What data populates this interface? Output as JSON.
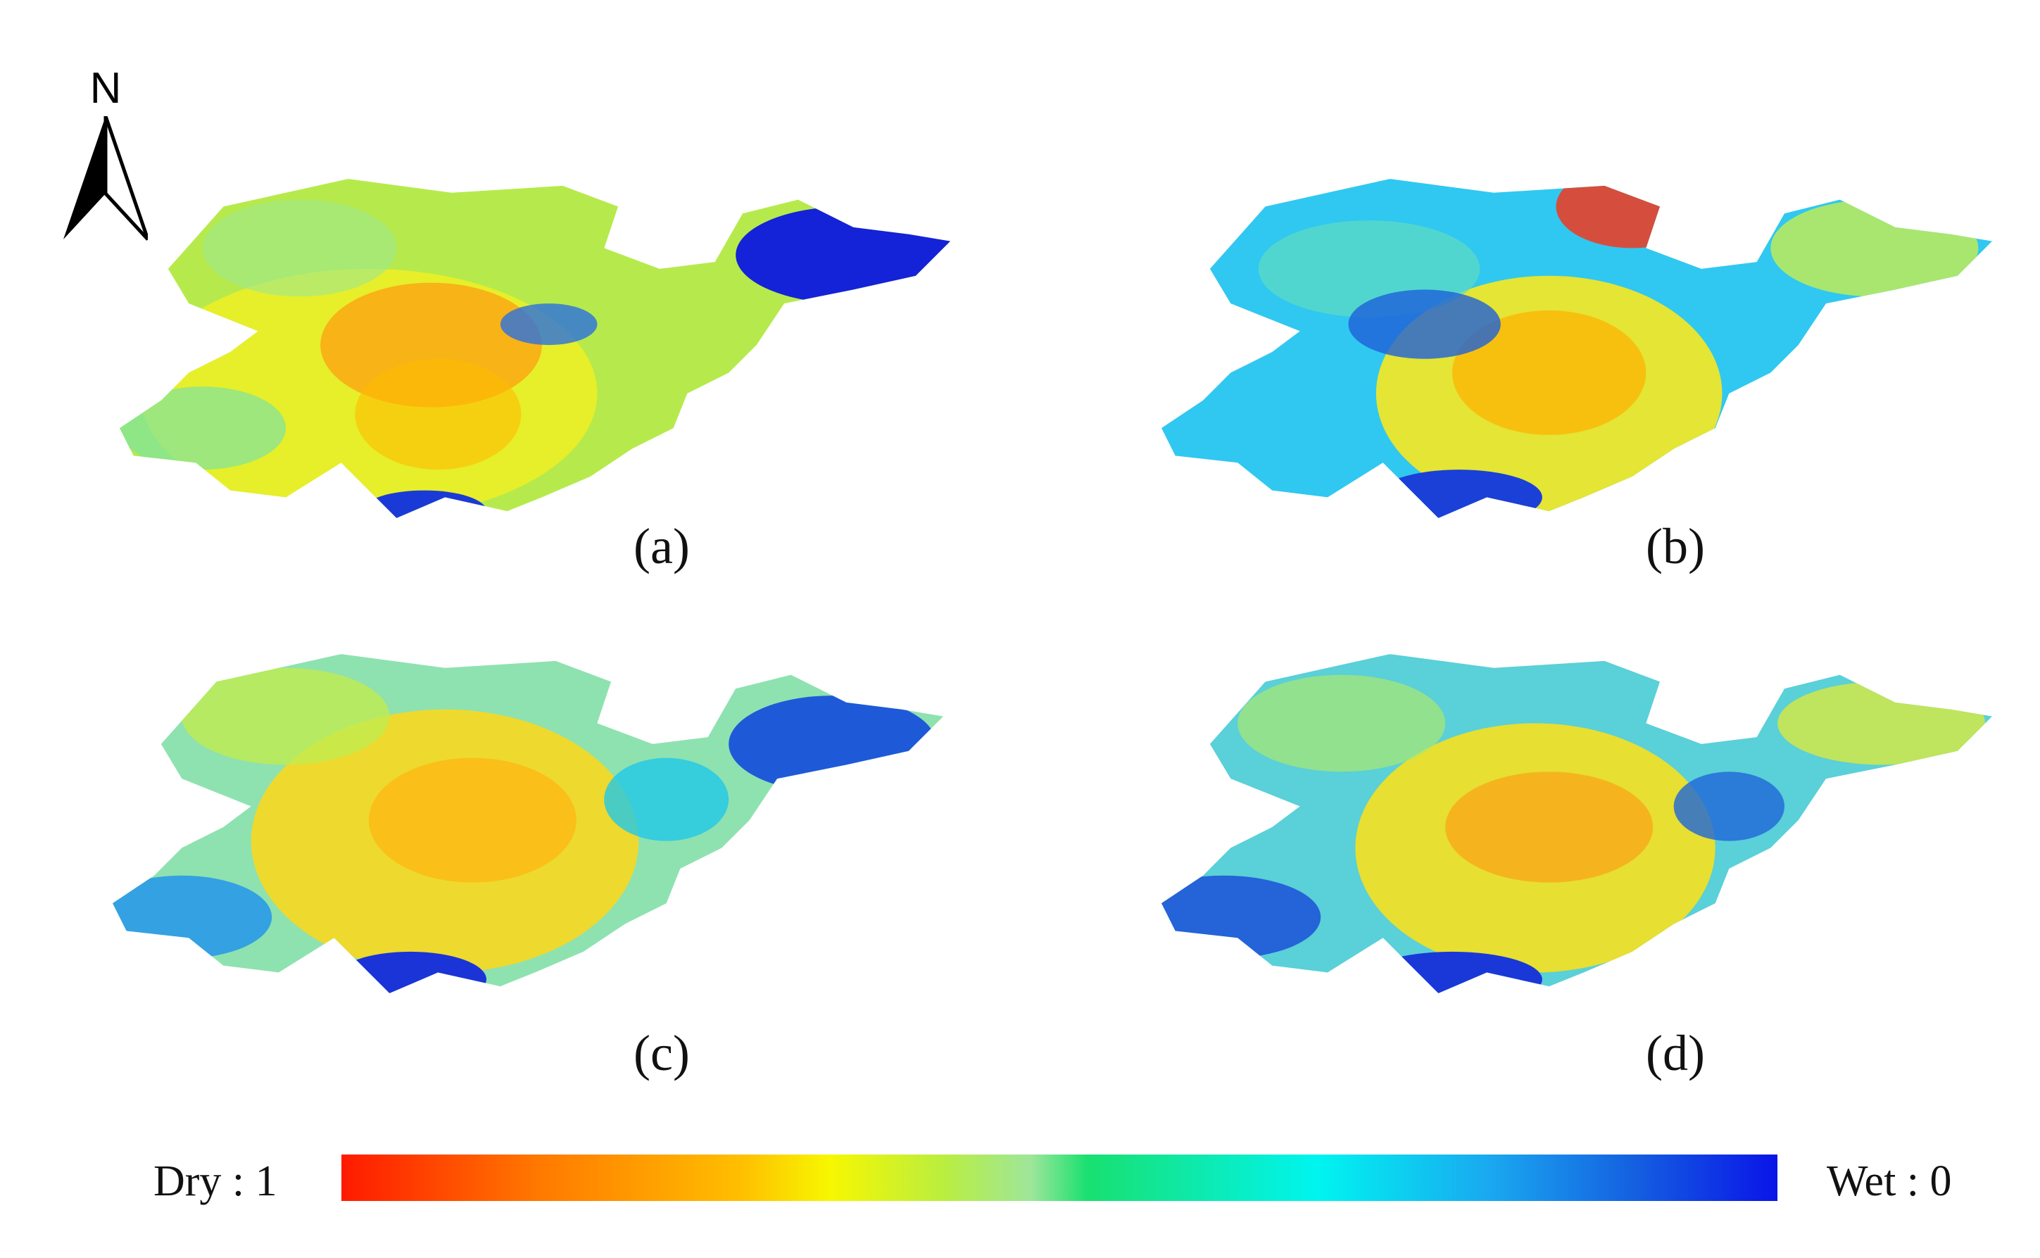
{
  "north_arrow": {
    "letter": "N",
    "icon": "north-arrow-icon"
  },
  "panels": [
    {
      "id": "a",
      "label": "(a)"
    },
    {
      "id": "b",
      "label": "(b)"
    },
    {
      "id": "c",
      "label": "(c)"
    },
    {
      "id": "d",
      "label": "(d)"
    }
  ],
  "legend": {
    "min_label": "Dry : 1",
    "max_label": "Wet : 0",
    "colors": [
      "#ff1a00",
      "#ff7a00",
      "#ffc000",
      "#f7f700",
      "#b9ee40",
      "#9ee69a",
      "#18e070",
      "#00f4f0",
      "#1aa8f0",
      "#1460e0",
      "#0a14e8"
    ]
  }
}
